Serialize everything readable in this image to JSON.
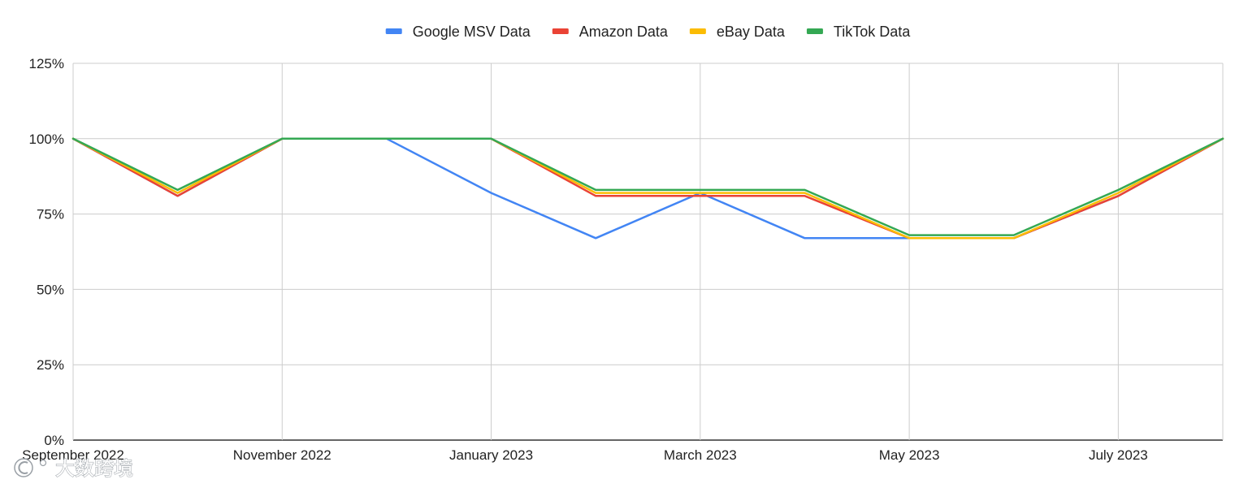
{
  "chart_data": {
    "type": "line",
    "title": "",
    "xlabel": "",
    "ylabel": "",
    "x": [
      "September 2022",
      "October 2022",
      "November 2022",
      "December 2022",
      "January 2023",
      "February 2023",
      "March 2023",
      "April 2023",
      "May 2023",
      "June 2023",
      "July 2023",
      "August 2023"
    ],
    "x_tick_labels": [
      "September 2022",
      "November 2022",
      "January 2023",
      "March 2023",
      "May 2023",
      "July 2023"
    ],
    "y_tick_labels": [
      "0%",
      "25%",
      "50%",
      "75%",
      "100%",
      "125%"
    ],
    "ylim": [
      0,
      125
    ],
    "grid": true,
    "legend_position": "top",
    "series": [
      {
        "name": "Google MSV Data",
        "color": "#4285f4",
        "values": [
          100,
          81,
          100,
          100,
          82,
          67,
          82,
          67,
          67,
          67,
          81,
          100
        ]
      },
      {
        "name": "Amazon Data",
        "color": "#ea4335",
        "values": [
          100,
          81,
          100,
          100,
          100,
          81,
          81,
          81,
          67,
          67,
          81,
          100
        ]
      },
      {
        "name": "eBay Data",
        "color": "#fbbc04",
        "values": [
          100,
          82,
          100,
          100,
          100,
          82,
          82,
          82,
          67,
          67,
          82,
          100
        ]
      },
      {
        "name": "TikTok Data",
        "color": "#34a853",
        "values": [
          100,
          83,
          100,
          100,
          100,
          83,
          83,
          83,
          68,
          68,
          83,
          100
        ]
      }
    ]
  },
  "watermark": {
    "text": "大数跨境",
    "icon": "logo-c-icon"
  }
}
